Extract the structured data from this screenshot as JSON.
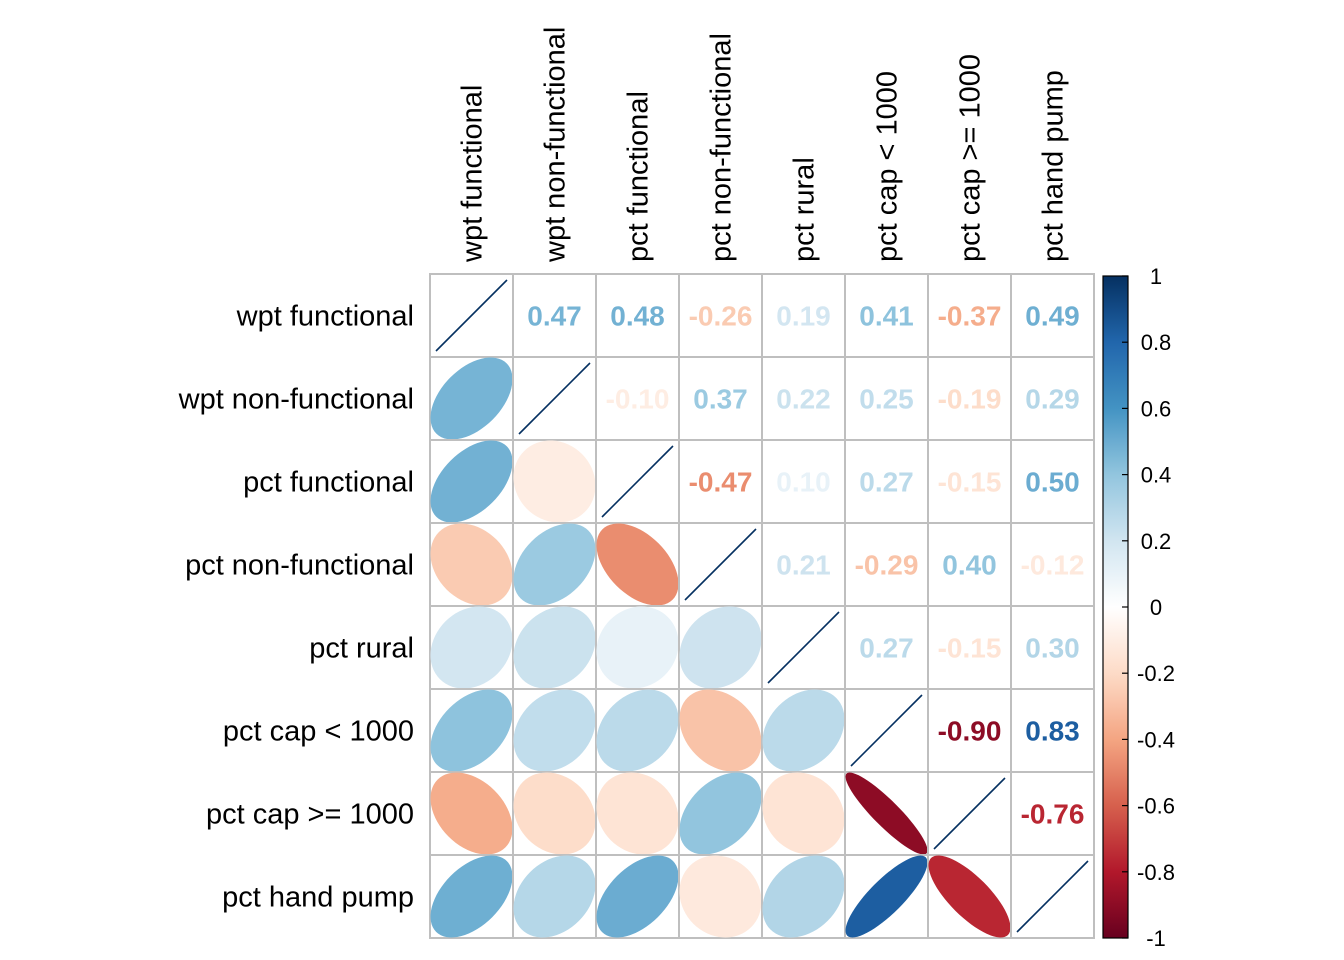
{
  "chart_data": {
    "type": "heatmap",
    "variables": [
      "wpt functional",
      "wpt non-functional",
      "pct functional",
      "pct non-functional",
      "pct rural",
      "pct cap < 1000",
      "pct cap >= 1000",
      "pct hand pump"
    ],
    "matrix": [
      [
        1,
        0.47,
        0.48,
        -0.26,
        0.19,
        0.41,
        -0.37,
        0.49
      ],
      [
        0.47,
        1,
        -0.1,
        0.37,
        0.22,
        0.25,
        -0.19,
        0.29
      ],
      [
        0.48,
        -0.1,
        1,
        -0.47,
        0.1,
        0.27,
        -0.15,
        0.5
      ],
      [
        -0.26,
        0.37,
        -0.47,
        1,
        0.21,
        -0.29,
        0.4,
        -0.12
      ],
      [
        0.19,
        0.22,
        0.1,
        0.21,
        1,
        0.27,
        -0.15,
        0.3
      ],
      [
        0.41,
        0.25,
        0.27,
        -0.29,
        0.27,
        1,
        -0.9,
        0.83
      ],
      [
        -0.37,
        -0.19,
        -0.15,
        0.4,
        -0.15,
        -0.9,
        1,
        -0.76
      ],
      [
        0.49,
        0.29,
        0.5,
        -0.12,
        0.3,
        0.83,
        -0.76,
        1
      ]
    ],
    "labels_upper": [
      [
        "",
        "0.47",
        "0.48",
        "-0.26",
        "0.19",
        "0.41",
        "-0.37",
        "0.49"
      ],
      [
        "",
        "",
        "-0.10",
        "0.37",
        "0.22",
        "0.25",
        "-0.19",
        "0.29"
      ],
      [
        "",
        "",
        "",
        "-0.47",
        "0.10",
        "0.27",
        "-0.15",
        "0.50"
      ],
      [
        "",
        "",
        "",
        "",
        "0.21",
        "-0.29",
        "0.40",
        "-0.12"
      ],
      [
        "",
        "",
        "",
        "",
        "",
        "0.27",
        "-0.15",
        "0.30"
      ],
      [
        "",
        "",
        "",
        "",
        "",
        "",
        "-0.90",
        "0.83"
      ],
      [
        "",
        "",
        "",
        "",
        "",
        "",
        "",
        "-0.76"
      ],
      [
        "",
        "",
        "",
        "",
        "",
        "",
        "",
        ""
      ]
    ],
    "lower_method": "ellipse",
    "upper_method": "number",
    "diagonal": "line",
    "colorbar": {
      "ticks": [
        "1",
        "0.8",
        "0.6",
        "0.4",
        "0.2",
        "0",
        "-0.2",
        "-0.4",
        "-0.6",
        "-0.8",
        "-1"
      ],
      "range": [
        -1,
        1
      ],
      "position": "right"
    },
    "palette": [
      "#67001F",
      "#B2182B",
      "#D6604D",
      "#F4A582",
      "#FDDBC7",
      "#FFFFFF",
      "#D1E5F0",
      "#92C5DE",
      "#4393C3",
      "#2166AC",
      "#053061"
    ],
    "grid": true,
    "grid_color": "#bfbfbf"
  }
}
